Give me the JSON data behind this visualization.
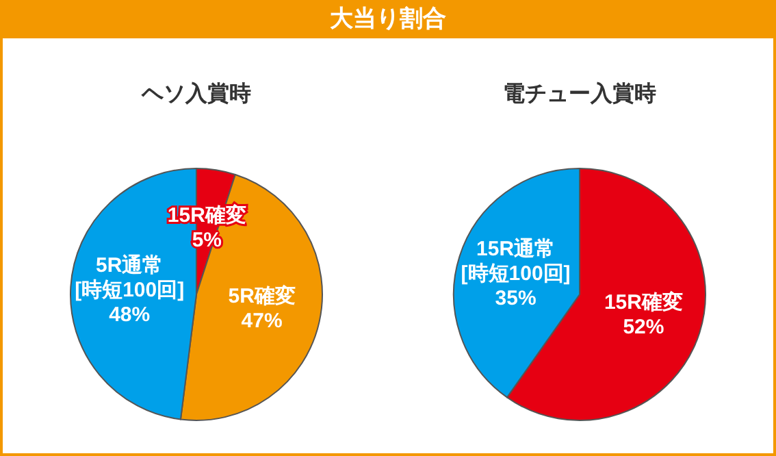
{
  "chart_data": [
    {
      "type": "pie",
      "title": "大当り割合",
      "subtitle": "ヘソ入賞時",
      "categories": [
        "15R確変",
        "5R確変",
        "5R通常\n[時短100回]"
      ],
      "values": [
        5,
        47,
        48
      ],
      "colors": [
        "#e60012",
        "#f39800",
        "#00a0e9"
      ],
      "value_labels": [
        "5%",
        "47%",
        "48%"
      ]
    },
    {
      "type": "pie",
      "subtitle": "電チュー入賞時",
      "categories": [
        "15R確変",
        "15R通常\n[時短100回]"
      ],
      "values": [
        52,
        35
      ],
      "colors": [
        "#e60012",
        "#00a0e9"
      ],
      "value_labels": [
        "52%",
        "35%"
      ]
    }
  ]
}
